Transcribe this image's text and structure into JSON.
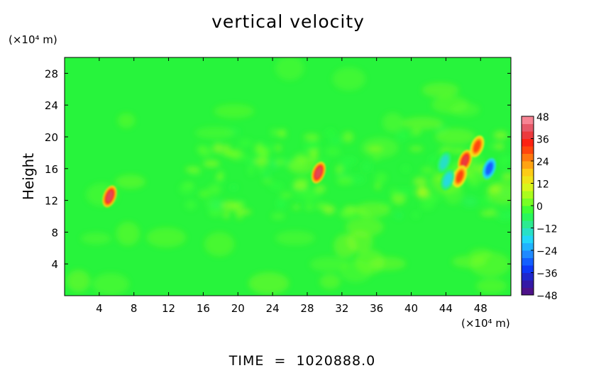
{
  "chart_data": {
    "type": "heatmap",
    "title": "vertical velocity",
    "ylabel": "Height",
    "xlabel": "",
    "x_unit": "(×10⁴ m)",
    "y_unit": "(×10⁴ m)",
    "footer": "TIME  =  1020888.0",
    "xlim": [
      0,
      51.5
    ],
    "ylim": [
      0,
      30
    ],
    "x_ticks": [
      4,
      8,
      12,
      16,
      20,
      24,
      28,
      32,
      36,
      40,
      44,
      48
    ],
    "y_ticks": [
      4,
      8,
      12,
      16,
      20,
      24,
      28
    ],
    "colorbar": {
      "range": [
        -48,
        48
      ],
      "tick_values": [
        48,
        36,
        24,
        12,
        0,
        -12,
        -24,
        -36,
        -48
      ],
      "tick_labels": [
        "48",
        "36",
        "24",
        "12",
        "0",
        "−12",
        "−24",
        "−36",
        "−48"
      ],
      "colormap": [
        "#5a0f7a",
        "#2b1bb0",
        "#0a3cff",
        "#1f8cff",
        "#21d6ff",
        "#2de6a0",
        "#27ff3c",
        "#8fff1e",
        "#e6f51a",
        "#ffc815",
        "#ff7a0e",
        "#ff1d0a",
        "#e04a5a",
        "#ff9aa8"
      ],
      "levels": 24
    },
    "background_value": 2,
    "features": [
      {
        "x": 5.2,
        "y": 12.5,
        "value": 40,
        "kind": "updraft core"
      },
      {
        "x": 29.3,
        "y": 15.5,
        "value": 40,
        "kind": "updraft core"
      },
      {
        "x": 46.2,
        "y": 17.0,
        "value": 38,
        "kind": "updraft core"
      },
      {
        "x": 47.6,
        "y": 18.8,
        "value": 30,
        "kind": "updraft"
      },
      {
        "x": 45.6,
        "y": 15.0,
        "value": 30,
        "kind": "updraft"
      },
      {
        "x": 49.0,
        "y": 16.0,
        "value": -30,
        "kind": "downdraft"
      },
      {
        "x": 43.8,
        "y": 16.8,
        "value": -14,
        "kind": "downdraft"
      },
      {
        "x": 44.2,
        "y": 14.6,
        "value": -16,
        "kind": "downdraft"
      }
    ]
  }
}
